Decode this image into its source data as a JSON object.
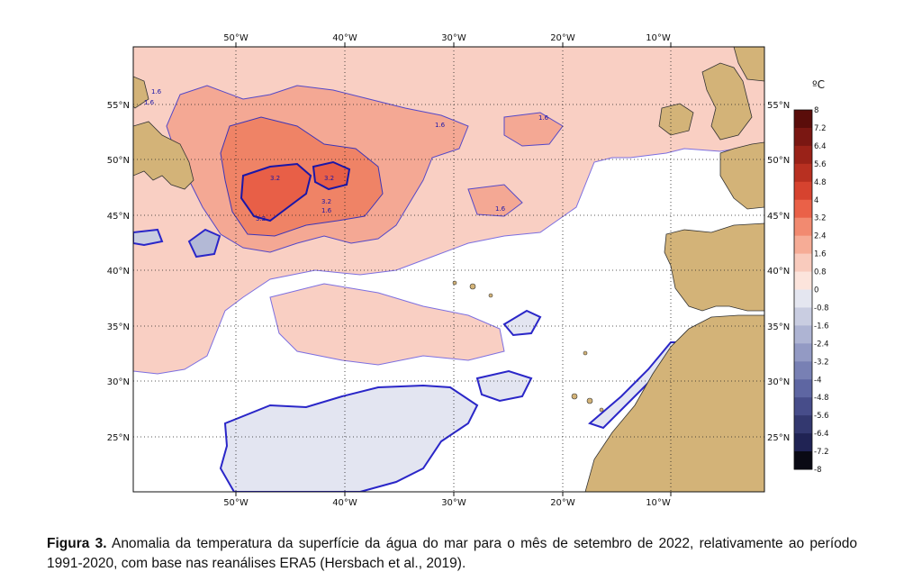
{
  "map": {
    "lon_labels": [
      "50°W",
      "40°W",
      "30°W",
      "20°W",
      "10°W"
    ],
    "lat_labels": [
      "55°N",
      "50°N",
      "45°N",
      "40°N",
      "35°N",
      "30°N",
      "25°N"
    ],
    "contour_labels": [
      "1.6",
      "1.6",
      "1.6",
      "1.6",
      "1.6",
      "3.2",
      "3.2",
      "3.2",
      "1.6",
      "3.2"
    ]
  },
  "legend": {
    "unit": "ºC",
    "ticks": [
      "8",
      "7.2",
      "6.4",
      "5.6",
      "4.8",
      "4",
      "3.2",
      "2.4",
      "1.6",
      "0.8",
      "0",
      "-0.8",
      "-1.6",
      "-2.4",
      "-3.2",
      "-4",
      "-4.8",
      "-5.6",
      "-6.4",
      "-7.2",
      "-8"
    ],
    "colors": [
      "#5a0d0a",
      "#7a1712",
      "#9a2218",
      "#b83021",
      "#d6432f",
      "#ea6148",
      "#f28a70",
      "#f6ac96",
      "#f9cbbd",
      "#fce4dc",
      "#ffffff",
      "#e4e6f0",
      "#c9cde1",
      "#aeb4d3",
      "#939ac4",
      "#7880b4",
      "#5e66a2",
      "#474d8a",
      "#33386f",
      "#202354",
      "#0a0a14"
    ]
  },
  "caption": {
    "label": "Figura 3.",
    "text": " Anomalia da temperatura da superfície da água do mar para o mês de setembro de 2022, relativamente ao período 1991-2020, com base nas reanálises ERA5 (Hersbach et al., 2019)."
  }
}
